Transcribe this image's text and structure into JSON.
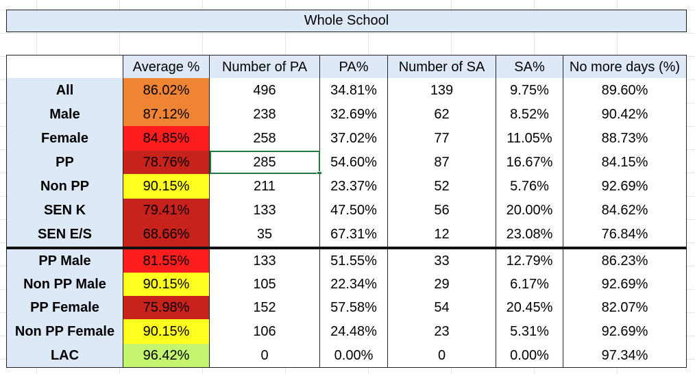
{
  "title": "Whole School",
  "headers": [
    "",
    "Average %",
    "Number of PA",
    "PA%",
    "Number of SA",
    "SA%",
    "No more days (%)"
  ],
  "colors": {
    "orange": "#ee8434",
    "red": "#ff1e1e",
    "dark_red": "#c8221c",
    "yellow": "#ffff1e",
    "light_green": "#c4f56f",
    "header_fill": "#dde9f7",
    "selection": "#1f7a3e"
  },
  "rows": [
    {
      "label": "All",
      "avg": "86.02%",
      "avg_color": "#ee8434",
      "npa": "496",
      "pa": "34.81%",
      "nsa": "139",
      "sa": "9.75%",
      "nmd": "89.60%"
    },
    {
      "label": "Male",
      "avg": "87.12%",
      "avg_color": "#ee8434",
      "npa": "238",
      "pa": "32.69%",
      "nsa": "62",
      "sa": "8.52%",
      "nmd": "90.42%"
    },
    {
      "label": "Female",
      "avg": "84.85%",
      "avg_color": "#ff1e1e",
      "npa": "258",
      "pa": "37.02%",
      "nsa": "77",
      "sa": "11.05%",
      "nmd": "88.73%"
    },
    {
      "label": "PP",
      "avg": "78.76%",
      "avg_color": "#c8221c",
      "npa": "285",
      "pa": "54.60%",
      "nsa": "87",
      "sa": "16.67%",
      "nmd": "84.15%"
    },
    {
      "label": "Non PP",
      "avg": "90.15%",
      "avg_color": "#ffff1e",
      "npa": "211",
      "pa": "23.37%",
      "nsa": "52",
      "sa": "5.76%",
      "nmd": "92.69%"
    },
    {
      "label": "SEN K",
      "avg": "79.41%",
      "avg_color": "#c8221c",
      "npa": "133",
      "pa": "47.50%",
      "nsa": "56",
      "sa": "20.00%",
      "nmd": "84.62%"
    },
    {
      "label": "SEN E/S",
      "avg": "68.66%",
      "avg_color": "#c8221c",
      "npa": "35",
      "pa": "67.31%",
      "nsa": "12",
      "sa": "23.08%",
      "nmd": "76.84%"
    },
    {
      "label": "PP Male",
      "avg": "81.55%",
      "avg_color": "#ff1e1e",
      "npa": "133",
      "pa": "51.55%",
      "nsa": "33",
      "sa": "12.79%",
      "nmd": "86.23%"
    },
    {
      "label": "Non PP Male",
      "avg": "90.15%",
      "avg_color": "#ffff1e",
      "npa": "105",
      "pa": "22.34%",
      "nsa": "29",
      "sa": "6.17%",
      "nmd": "92.69%"
    },
    {
      "label": "PP Female",
      "avg": "75.98%",
      "avg_color": "#c8221c",
      "npa": "152",
      "pa": "57.58%",
      "nsa": "54",
      "sa": "20.45%",
      "nmd": "82.07%"
    },
    {
      "label": "Non PP Female",
      "avg": "90.15%",
      "avg_color": "#ffff1e",
      "npa": "106",
      "pa": "24.48%",
      "nsa": "23",
      "sa": "5.31%",
      "nmd": "92.69%"
    },
    {
      "label": "LAC",
      "avg": "96.42%",
      "avg_color": "#c4f56f",
      "npa": "0",
      "pa": "0.00%",
      "nsa": "0",
      "sa": "0.00%",
      "nmd": "97.34%"
    }
  ]
}
